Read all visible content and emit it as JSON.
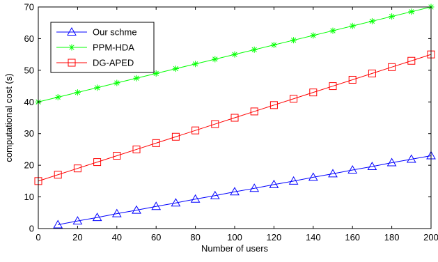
{
  "chart_data": {
    "type": "line",
    "title": "",
    "xlabel": "Number of users",
    "ylabel": "computational cost (s)",
    "xlim": [
      0,
      200
    ],
    "ylim": [
      0,
      70
    ],
    "xticks": [
      0,
      20,
      40,
      60,
      80,
      100,
      120,
      140,
      160,
      180,
      200
    ],
    "yticks": [
      0,
      10,
      20,
      30,
      40,
      50,
      60,
      70
    ],
    "grid": false,
    "legend_position": "top-left",
    "series": [
      {
        "name": "Our schme",
        "color": "#0000ff",
        "marker": "triangle",
        "x": [
          10,
          20,
          30,
          40,
          50,
          60,
          70,
          80,
          90,
          100,
          110,
          120,
          130,
          140,
          150,
          160,
          170,
          180,
          190,
          200
        ],
        "y": [
          1.2,
          2.4,
          3.5,
          4.7,
          5.8,
          7.0,
          8.1,
          9.3,
          10.4,
          11.6,
          12.7,
          13.9,
          15.0,
          16.2,
          17.3,
          18.5,
          19.6,
          20.8,
          21.9,
          23.0
        ]
      },
      {
        "name": "PPM-HDA",
        "color": "#00ff00",
        "marker": "star",
        "x": [
          0,
          10,
          20,
          30,
          40,
          50,
          60,
          70,
          80,
          90,
          100,
          110,
          120,
          130,
          140,
          150,
          160,
          170,
          180,
          190,
          200
        ],
        "y": [
          40.0,
          41.5,
          43.0,
          44.5,
          46.0,
          47.5,
          49.0,
          50.5,
          52.0,
          53.5,
          55.0,
          56.5,
          58.0,
          59.5,
          61.0,
          62.5,
          64.0,
          65.5,
          67.0,
          68.5,
          70.0
        ]
      },
      {
        "name": "DG-APED",
        "color": "#ff0000",
        "marker": "square",
        "x": [
          0,
          10,
          20,
          30,
          40,
          50,
          60,
          70,
          80,
          90,
          100,
          110,
          120,
          130,
          140,
          150,
          160,
          170,
          180,
          190,
          200
        ],
        "y": [
          15.0,
          17.0,
          19.0,
          21.0,
          23.0,
          25.0,
          27.0,
          29.0,
          31.0,
          33.0,
          35.0,
          37.0,
          39.0,
          41.0,
          43.0,
          45.0,
          47.0,
          49.0,
          51.0,
          53.0,
          55.0
        ]
      }
    ]
  }
}
